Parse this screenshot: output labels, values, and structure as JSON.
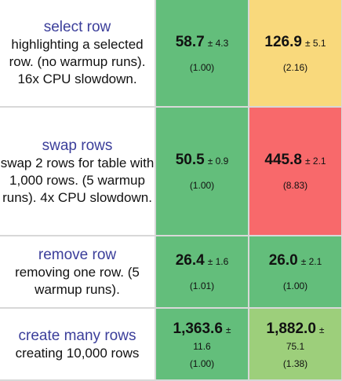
{
  "colors": {
    "bright_green": "#63be7b",
    "light_green": "#9dcf7b",
    "yellow": "#f9d97c",
    "red": "#f8696b",
    "border": "#d8d8d8",
    "name_text": "#3b3e9a"
  },
  "rows": [
    {
      "name": "select row",
      "description": "highlighting a selected row. (no warmup runs). 16x CPU slowdown.",
      "a": {
        "value": "58.7",
        "dev": "± 4.3",
        "ratio": "(1.00)",
        "color": "#63be7b"
      },
      "b": {
        "value": "126.9",
        "dev": "± 5.1",
        "ratio": "(2.16)",
        "color": "#f9d97c"
      }
    },
    {
      "name": "swap rows",
      "description": "swap 2 rows for table with 1,000 rows. (5 warmup runs). 4x CPU slowdown.",
      "a": {
        "value": "50.5",
        "dev": "± 0.9",
        "ratio": "(1.00)",
        "color": "#63be7b"
      },
      "b": {
        "value": "445.8",
        "dev": "± 2.1",
        "ratio": "(8.83)",
        "color": "#f8696b"
      }
    },
    {
      "name": "remove row",
      "description": "removing one row. (5 warmup runs).",
      "a": {
        "value": "26.4",
        "dev": "± 1.6",
        "ratio": "(1.01)",
        "color": "#63be7b"
      },
      "b": {
        "value": "26.0",
        "dev": "± 2.1",
        "ratio": "(1.00)",
        "color": "#63be7b"
      }
    },
    {
      "name": "create many rows",
      "description": "creating 10,000 rows",
      "a": {
        "value": "1,363.6",
        "dev_sign": "±",
        "dev_value": "11.6",
        "ratio": "(1.00)",
        "color": "#63be7b"
      },
      "b": {
        "value": "1,882.0",
        "dev_sign": "±",
        "dev_value": "75.1",
        "ratio": "(1.38)",
        "color": "#9dcf7b"
      }
    }
  ]
}
